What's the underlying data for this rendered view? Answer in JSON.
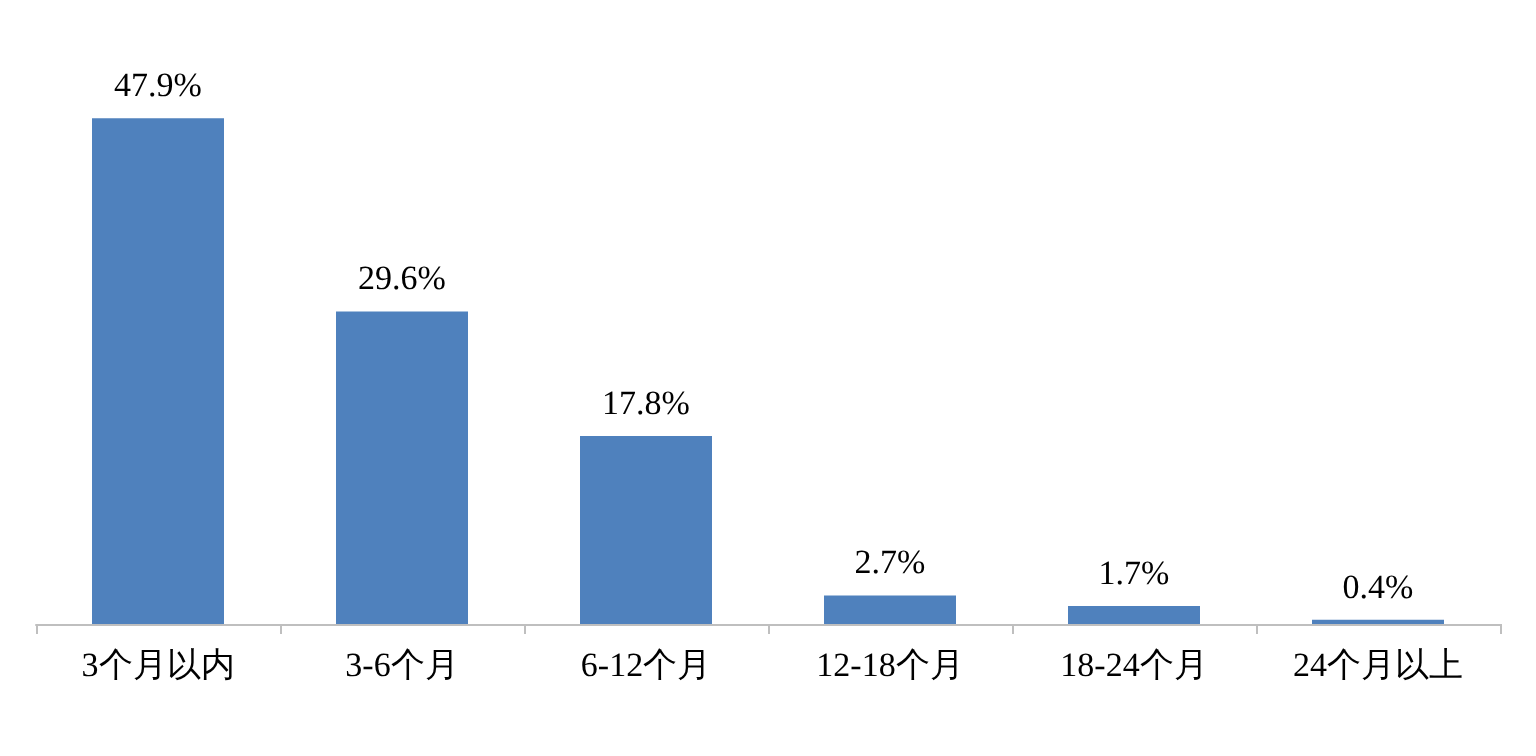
{
  "chart_data": {
    "type": "bar",
    "categories": [
      "3个月以内",
      "3-6个月",
      "6-12个月",
      "12-18个月",
      "18-24个月",
      "24个月以上"
    ],
    "values": [
      47.9,
      29.6,
      17.8,
      2.7,
      1.7,
      0.4
    ],
    "value_labels": [
      "47.9%",
      "29.6%",
      "17.8%",
      "2.7%",
      "1.7%",
      "0.4%"
    ],
    "color": "#4f81bd"
  }
}
